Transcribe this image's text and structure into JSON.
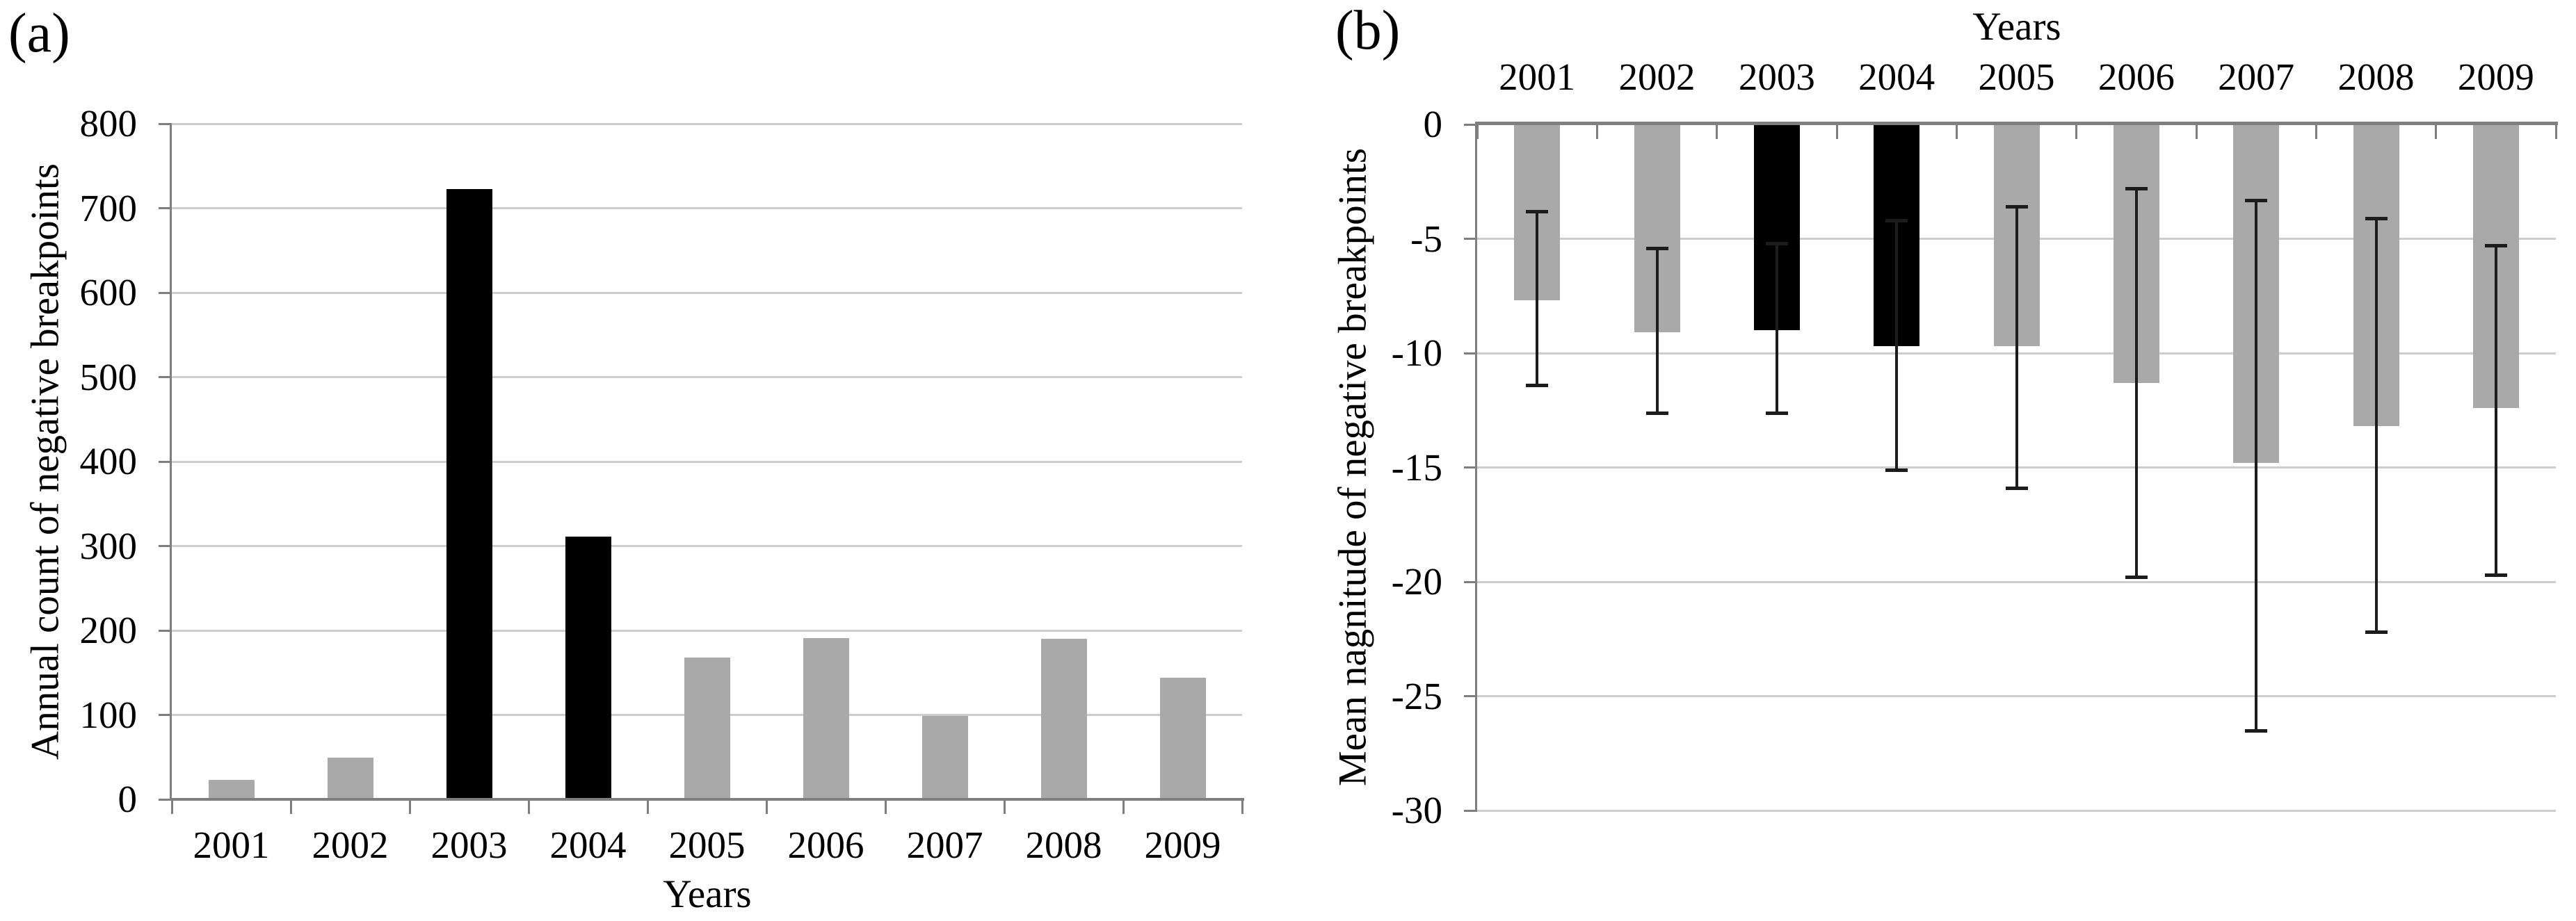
{
  "figure": {
    "panel_a_label": "(a)",
    "panel_b_label": "(b)"
  },
  "colors": {
    "background": "#ffffff",
    "text": "#000000",
    "bar_gray": "#a9a9a9",
    "bar_black": "#000000",
    "gridline": "#cdcdcd",
    "axis": "#7f7f7f",
    "error_bar": "#1c1c1c"
  },
  "chart_data": [
    {
      "panel": "a",
      "panel_label": "(a)",
      "type": "bar",
      "orientation": "up",
      "xlabel": "Years",
      "xlabel_position": "bottom",
      "ylabel": "Annual count of negative breakpoints",
      "categories": [
        "2001",
        "2002",
        "2003",
        "2004",
        "2005",
        "2006",
        "2007",
        "2008",
        "2009"
      ],
      "values": [
        23,
        49,
        723,
        311,
        168,
        191,
        99,
        190,
        144
      ],
      "bar_colors": [
        "gray",
        "gray",
        "black",
        "black",
        "gray",
        "gray",
        "gray",
        "gray",
        "gray"
      ],
      "ylim": [
        0,
        800
      ],
      "ytick_labels": [
        "0",
        "100",
        "200",
        "300",
        "400",
        "500",
        "600",
        "700",
        "800"
      ],
      "grid": true,
      "legend": "none"
    },
    {
      "panel": "b",
      "panel_label": "(b)",
      "type": "bar",
      "orientation": "down",
      "xlabel": "Years",
      "xlabel_position": "top",
      "ylabel": "Mean nagnitude of negative breakpoints",
      "categories": [
        "2001",
        "2002",
        "2003",
        "2004",
        "2005",
        "2006",
        "2007",
        "2008",
        "2009"
      ],
      "values": [
        -7.7,
        -9.1,
        -9.0,
        -9.7,
        -9.7,
        -11.3,
        -14.8,
        -13.2,
        -12.4
      ],
      "error_bars": {
        "top": [
          -3.8,
          -5.4,
          -5.2,
          -4.2,
          -3.6,
          -2.8,
          -3.3,
          -4.1,
          -5.3
        ],
        "bottom": [
          -11.4,
          -12.6,
          -12.6,
          -15.1,
          -15.9,
          -19.8,
          -26.5,
          -22.2,
          -19.7
        ]
      },
      "bar_colors": [
        "gray",
        "gray",
        "black",
        "black",
        "gray",
        "gray",
        "gray",
        "gray",
        "gray"
      ],
      "ylim": [
        0,
        -30
      ],
      "ytick_labels": [
        "0",
        "-5",
        "-10",
        "-15",
        "-20",
        "-25",
        "-30"
      ],
      "grid": true,
      "legend": "none"
    }
  ]
}
